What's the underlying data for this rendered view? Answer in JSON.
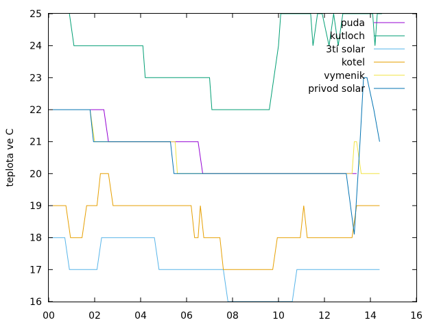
{
  "chart_data": {
    "type": "line",
    "title": "",
    "xlabel": "",
    "ylabel": "teplota ve C",
    "xlim": [
      0,
      16
    ],
    "ylim": [
      16,
      25
    ],
    "grid": false,
    "legend_position": "top-right",
    "x_ticks": [
      {
        "value": 0,
        "label": "00"
      },
      {
        "value": 2,
        "label": "02"
      },
      {
        "value": 4,
        "label": "04"
      },
      {
        "value": 6,
        "label": "06"
      },
      {
        "value": 8,
        "label": "08"
      },
      {
        "value": 10,
        "label": "10"
      },
      {
        "value": 12,
        "label": "12"
      },
      {
        "value": 14,
        "label": "14"
      },
      {
        "value": 16,
        "label": "16"
      }
    ],
    "y_ticks": [
      {
        "value": 16,
        "label": "16"
      },
      {
        "value": 17,
        "label": "17"
      },
      {
        "value": 18,
        "label": "18"
      },
      {
        "value": 19,
        "label": "19"
      },
      {
        "value": 20,
        "label": "20"
      },
      {
        "value": 21,
        "label": "21"
      },
      {
        "value": 22,
        "label": "22"
      },
      {
        "value": 23,
        "label": "23"
      },
      {
        "value": 24,
        "label": "24"
      },
      {
        "value": 25,
        "label": "25"
      }
    ],
    "series": [
      {
        "name": "puda",
        "color": "#9400d3",
        "x": [
          0,
          1.8,
          2.4,
          2.6,
          5.4,
          6.5,
          6.7,
          13.1,
          13.4
        ],
        "y": [
          22,
          22,
          22,
          21,
          21,
          21,
          20,
          20,
          20
        ]
      },
      {
        "name": "kutloch",
        "color": "#009e73",
        "x": [
          0.9,
          1.1,
          4.1,
          4.2,
          7.0,
          7.1,
          9.6,
          10.0,
          10.1,
          11.1,
          11.4,
          11.5,
          11.7,
          11.9,
          12.2,
          12.4,
          12.6,
          12.8,
          13.0,
          13.2,
          13.4,
          13.6,
          13.9,
          14.1,
          14.2,
          14.3,
          14.5
        ],
        "y": [
          25,
          24,
          24,
          23,
          23,
          22,
          22,
          24,
          25,
          25,
          25,
          24,
          25,
          25,
          24,
          25,
          24,
          25,
          25,
          25,
          25,
          25,
          25,
          25,
          24,
          25,
          25
        ]
      },
      {
        "name": "3tí solar",
        "color": "#56b4e9",
        "x": [
          0,
          0.7,
          0.9,
          2.1,
          2.3,
          4.6,
          4.8,
          7.6,
          7.8,
          10.6,
          10.8,
          14.4
        ],
        "y": [
          18,
          18,
          17,
          17,
          18,
          18,
          17,
          17,
          16,
          16,
          17,
          17
        ]
      },
      {
        "name": "kotel",
        "color": "#e69f00",
        "x": [
          0,
          0.75,
          0.95,
          1.45,
          1.65,
          2.1,
          2.25,
          2.6,
          2.8,
          6.2,
          6.35,
          6.5,
          6.6,
          6.75,
          7.45,
          7.6,
          9.75,
          9.95,
          10.95,
          11.1,
          11.25,
          11.45,
          12.6,
          12.8,
          13.05,
          13.2,
          13.4,
          14.4
        ],
        "y": [
          19,
          19,
          18,
          18,
          19,
          19,
          20,
          20,
          19,
          19,
          18,
          18,
          19,
          18,
          18,
          17,
          17,
          18,
          18,
          19,
          18,
          18,
          18,
          18,
          18,
          18,
          19,
          19
        ]
      },
      {
        "name": "vymenik",
        "color": "#f0e442",
        "x": [
          0,
          1.8,
          2.0,
          5.5,
          5.6,
          13.2,
          13.3,
          13.4,
          13.6,
          14.4
        ],
        "y": [
          22,
          22,
          21,
          21,
          20,
          20,
          21,
          21,
          20,
          20
        ]
      },
      {
        "name": "privod solar",
        "color": "#0072b2",
        "x": [
          0,
          1.8,
          1.95,
          5.3,
          5.45,
          12.95,
          13.3,
          13.55,
          13.7,
          13.85,
          14.15,
          14.4
        ],
        "y": [
          22,
          22,
          21,
          21,
          20,
          20,
          18.1,
          21,
          23,
          23,
          22,
          21
        ]
      }
    ]
  }
}
